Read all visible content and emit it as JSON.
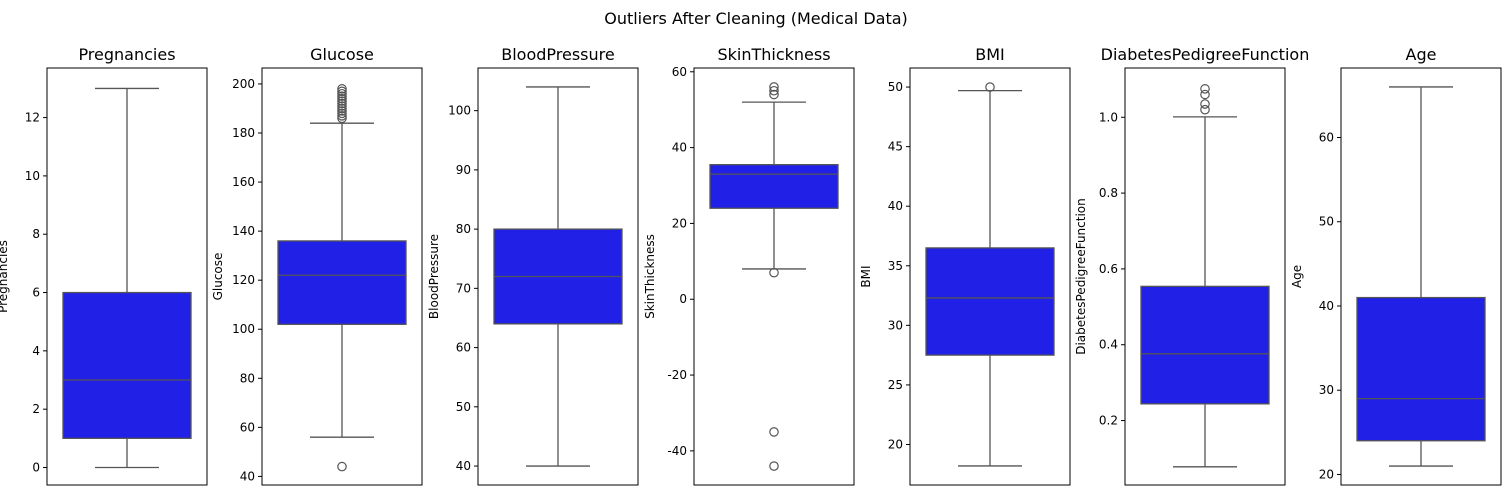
{
  "suptitle": "Outliers After Cleaning (Medical Data)",
  "colors": {
    "box_fill": "#2020e6",
    "line": "#555555",
    "axes": "#000000"
  },
  "chart_data": [
    {
      "type": "box",
      "title": "Pregnancies",
      "ylabel": "Pregnancies",
      "ylim": [
        -0.6,
        13.7
      ],
      "yticks": [
        0,
        2,
        4,
        6,
        8,
        10,
        12
      ],
      "whisker_low": 0,
      "q1": 1,
      "median": 3,
      "q3": 6,
      "whisker_high": 13,
      "outliers": []
    },
    {
      "type": "box",
      "title": "Glucose",
      "ylabel": "Glucose",
      "ylim": [
        36.5,
        206.5
      ],
      "yticks": [
        40,
        60,
        80,
        100,
        120,
        140,
        160,
        180,
        200
      ],
      "whisker_low": 56,
      "q1": 102,
      "median": 122,
      "q3": 136,
      "whisker_high": 184,
      "outliers": [
        44,
        186,
        187,
        188,
        189,
        190,
        191,
        192,
        193,
        194,
        195,
        196,
        197,
        198
      ]
    },
    {
      "type": "box",
      "title": "BloodPressure",
      "ylabel": "BloodPressure",
      "ylim": [
        36.8,
        107.2
      ],
      "yticks": [
        40,
        50,
        60,
        70,
        80,
        90,
        100
      ],
      "whisker_low": 40,
      "q1": 64,
      "median": 72,
      "q3": 80,
      "whisker_high": 104,
      "outliers": []
    },
    {
      "type": "box",
      "title": "SkinThickness",
      "ylabel": "SkinThickness",
      "ylim": [
        -49,
        61
      ],
      "yticks": [
        -40,
        -20,
        0,
        20,
        40,
        60
      ],
      "whisker_low": 8,
      "q1": 24,
      "median": 33,
      "q3": 35.5,
      "whisker_high": 52,
      "outliers": [
        -44,
        -35,
        7,
        54,
        55,
        56
      ]
    },
    {
      "type": "box",
      "title": "BMI",
      "ylabel": "BMI",
      "ylim": [
        16.6,
        51.6
      ],
      "yticks": [
        20,
        25,
        30,
        35,
        40,
        45,
        50
      ],
      "whisker_low": 18.2,
      "q1": 27.5,
      "median": 32.3,
      "q3": 36.5,
      "whisker_high": 49.7,
      "outliers": [
        50
      ]
    },
    {
      "type": "box",
      "title": "DiabetesPedigreeFunction",
      "ylabel": "DiabetesPedigreeFunction",
      "ylim": [
        0.03,
        1.13
      ],
      "yticks": [
        0.2,
        0.4,
        0.6,
        0.8,
        1.0
      ],
      "ytick_labels": [
        "0.2",
        "0.4",
        "0.6",
        "0.8",
        "1.0"
      ],
      "whisker_low": 0.078,
      "q1": 0.244,
      "median": 0.376,
      "q3": 0.554,
      "whisker_high": 1.001,
      "outliers": [
        1.02,
        1.035,
        1.06,
        1.075
      ]
    },
    {
      "type": "box",
      "title": "Age",
      "ylabel": "Age",
      "ylim": [
        18.75,
        68.25
      ],
      "yticks": [
        20,
        30,
        40,
        50,
        60
      ],
      "whisker_low": 21,
      "q1": 24,
      "median": 29,
      "q3": 41,
      "whisker_high": 66,
      "outliers": []
    }
  ]
}
